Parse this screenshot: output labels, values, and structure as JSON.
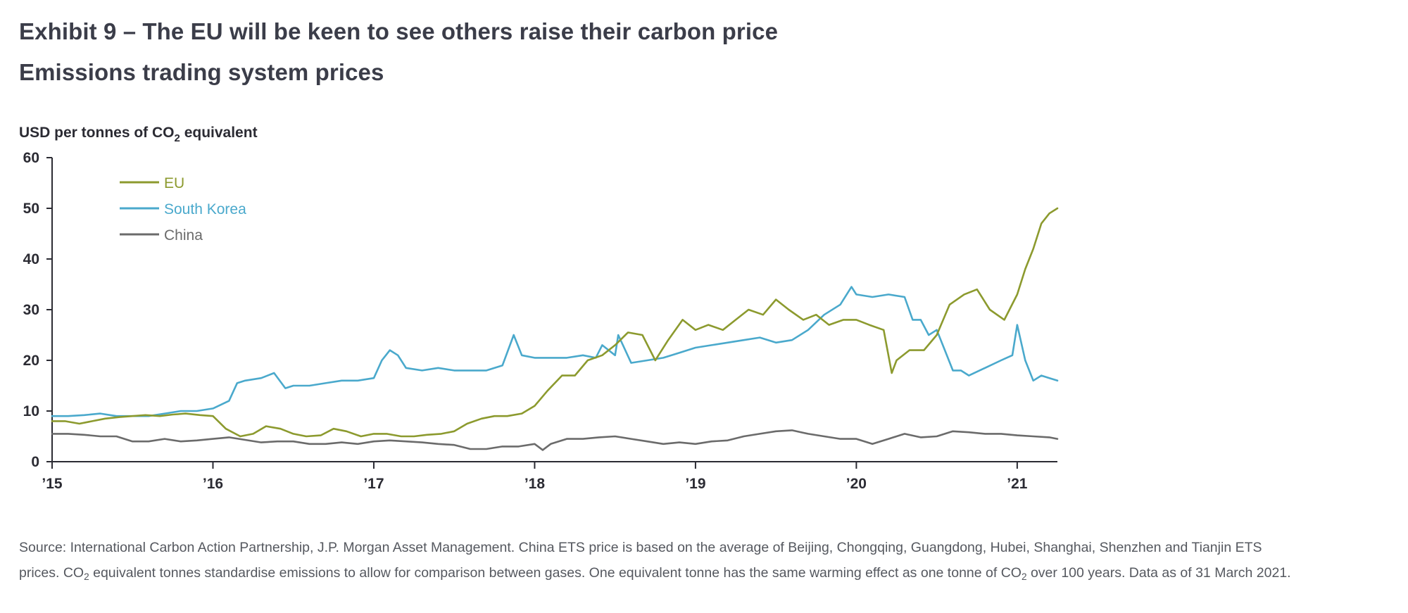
{
  "title": "Exhibit 9 – The EU will be keen to see others raise their carbon price",
  "subtitle": "Emissions trading system prices",
  "chart_data": {
    "type": "line",
    "ylabel_prefix": "USD per tonnes of CO",
    "ylabel_sub": "2",
    "ylabel_suffix": " equivalent",
    "ylim": [
      0,
      60
    ],
    "yticks": [
      0,
      10,
      20,
      30,
      40,
      50,
      60
    ],
    "xlim": [
      2015.0,
      2021.25
    ],
    "xticks": [
      {
        "value": 2015,
        "label": "’15"
      },
      {
        "value": 2016,
        "label": "’16"
      },
      {
        "value": 2017,
        "label": "’17"
      },
      {
        "value": 2018,
        "label": "’18"
      },
      {
        "value": 2019,
        "label": "’19"
      },
      {
        "value": 2020,
        "label": "’20"
      },
      {
        "value": 2021,
        "label": "’21"
      }
    ],
    "grid": false,
    "legend_position": "top-left",
    "series": [
      {
        "name": "EU",
        "color": "#8c9a2e",
        "x": [
          2015.0,
          2015.08,
          2015.17,
          2015.25,
          2015.33,
          2015.42,
          2015.5,
          2015.58,
          2015.67,
          2015.75,
          2015.83,
          2015.92,
          2016.0,
          2016.08,
          2016.17,
          2016.25,
          2016.33,
          2016.42,
          2016.5,
          2016.58,
          2016.67,
          2016.75,
          2016.83,
          2016.92,
          2017.0,
          2017.08,
          2017.17,
          2017.25,
          2017.33,
          2017.42,
          2017.5,
          2017.58,
          2017.67,
          2017.75,
          2017.83,
          2017.92,
          2018.0,
          2018.08,
          2018.17,
          2018.25,
          2018.33,
          2018.42,
          2018.5,
          2018.58,
          2018.67,
          2018.75,
          2018.83,
          2018.92,
          2019.0,
          2019.08,
          2019.17,
          2019.25,
          2019.33,
          2019.42,
          2019.5,
          2019.58,
          2019.67,
          2019.75,
          2019.83,
          2019.92,
          2020.0,
          2020.08,
          2020.17,
          2020.22,
          2020.25,
          2020.33,
          2020.42,
          2020.5,
          2020.58,
          2020.67,
          2020.75,
          2020.83,
          2020.92,
          2021.0,
          2021.05,
          2021.1,
          2021.15,
          2021.2,
          2021.25
        ],
        "values": [
          8,
          8,
          7.5,
          8,
          8.5,
          8.8,
          9,
          9.2,
          9,
          9.3,
          9.5,
          9.2,
          9,
          6.5,
          5,
          5.5,
          7,
          6.5,
          5.5,
          5,
          5.2,
          6.5,
          6,
          5,
          5.5,
          5.5,
          5,
          5,
          5.3,
          5.5,
          6,
          7.5,
          8.5,
          9,
          9,
          9.5,
          11,
          14,
          17,
          17,
          20,
          21,
          23,
          25.5,
          25,
          20,
          24,
          28,
          26,
          27,
          26,
          28,
          30,
          29,
          32,
          30,
          28,
          29,
          27,
          28,
          28,
          27,
          26,
          17.5,
          20,
          22,
          22,
          25,
          31,
          33,
          34,
          30,
          28,
          33,
          38,
          42,
          47,
          49,
          50
        ]
      },
      {
        "name": "South Korea",
        "color": "#4aa9cc",
        "x": [
          2015.0,
          2015.1,
          2015.2,
          2015.3,
          2015.4,
          2015.5,
          2015.6,
          2015.7,
          2015.8,
          2015.9,
          2016.0,
          2016.1,
          2016.15,
          2016.2,
          2016.3,
          2016.38,
          2016.45,
          2016.5,
          2016.6,
          2016.7,
          2016.8,
          2016.9,
          2017.0,
          2017.05,
          2017.1,
          2017.15,
          2017.2,
          2017.3,
          2017.4,
          2017.5,
          2017.6,
          2017.7,
          2017.8,
          2017.87,
          2017.92,
          2018.0,
          2018.1,
          2018.2,
          2018.3,
          2018.38,
          2018.42,
          2018.5,
          2018.52,
          2018.6,
          2018.7,
          2018.8,
          2018.9,
          2019.0,
          2019.1,
          2019.2,
          2019.3,
          2019.4,
          2019.5,
          2019.6,
          2019.7,
          2019.8,
          2019.9,
          2019.97,
          2020.0,
          2020.1,
          2020.2,
          2020.3,
          2020.35,
          2020.4,
          2020.45,
          2020.5,
          2020.55,
          2020.6,
          2020.65,
          2020.7,
          2020.8,
          2020.9,
          2020.97,
          2021.0,
          2021.05,
          2021.1,
          2021.15,
          2021.2,
          2021.25
        ],
        "values": [
          9,
          9,
          9.2,
          9.5,
          9,
          9,
          9,
          9.5,
          10,
          10,
          10.5,
          12,
          15.5,
          16,
          16.5,
          17.5,
          14.5,
          15,
          15,
          15.5,
          16,
          16,
          16.5,
          20,
          22,
          21,
          18.5,
          18,
          18.5,
          18,
          18,
          18,
          19,
          25,
          21,
          20.5,
          20.5,
          20.5,
          21,
          20.5,
          23,
          21,
          25,
          19.5,
          20,
          20.5,
          21.5,
          22.5,
          23,
          23.5,
          24,
          24.5,
          23.5,
          24,
          26,
          29,
          31,
          34.5,
          33,
          32.5,
          33,
          32.5,
          28,
          28,
          25,
          26,
          22,
          18,
          18,
          17,
          18.5,
          20,
          21,
          27,
          20,
          16,
          17,
          16.5,
          16
        ]
      },
      {
        "name": "China",
        "color": "#6b6b6b",
        "x": [
          2015.0,
          2015.1,
          2015.2,
          2015.3,
          2015.4,
          2015.5,
          2015.6,
          2015.7,
          2015.8,
          2015.9,
          2016.0,
          2016.1,
          2016.2,
          2016.3,
          2016.4,
          2016.5,
          2016.6,
          2016.7,
          2016.8,
          2016.9,
          2017.0,
          2017.1,
          2017.2,
          2017.3,
          2017.4,
          2017.5,
          2017.6,
          2017.7,
          2017.8,
          2017.9,
          2018.0,
          2018.05,
          2018.1,
          2018.2,
          2018.3,
          2018.4,
          2018.5,
          2018.6,
          2018.7,
          2018.8,
          2018.9,
          2019.0,
          2019.1,
          2019.2,
          2019.3,
          2019.4,
          2019.5,
          2019.6,
          2019.7,
          2019.8,
          2019.9,
          2020.0,
          2020.1,
          2020.2,
          2020.3,
          2020.4,
          2020.5,
          2020.6,
          2020.7,
          2020.8,
          2020.9,
          2021.0,
          2021.1,
          2021.2,
          2021.25
        ],
        "values": [
          5.5,
          5.5,
          5.3,
          5,
          5,
          4,
          4,
          4.5,
          4,
          4.2,
          4.5,
          4.8,
          4.3,
          3.8,
          4,
          4,
          3.5,
          3.5,
          3.8,
          3.5,
          4,
          4.2,
          4,
          3.8,
          3.5,
          3.3,
          2.5,
          2.5,
          3,
          3,
          3.5,
          2.3,
          3.5,
          4.5,
          4.5,
          4.8,
          5,
          4.5,
          4,
          3.5,
          3.8,
          3.5,
          4,
          4.2,
          5,
          5.5,
          6,
          6.2,
          5.5,
          5,
          4.5,
          4.5,
          3.5,
          4.5,
          5.5,
          4.8,
          5,
          6,
          5.8,
          5.5,
          5.5,
          5.2,
          5,
          4.8,
          4.5
        ]
      }
    ]
  },
  "footnote": {
    "line1": "Source: International Carbon Action Partnership, J.P. Morgan Asset Management. China ETS price is based on the average of Beijing, Chongqing, Guangdong, Hubei, Shanghai, Shenzhen and Tianjin ETS",
    "line2_a": "prices. CO",
    "line2_sub1": "2",
    "line2_b": " equivalent tonnes standardise emissions to allow for comparison between gases. One equivalent tonne has the same warming effect as one tonne of CO",
    "line2_sub2": "2",
    "line2_c": " over 100 years. Data as of 31 March 2021."
  }
}
